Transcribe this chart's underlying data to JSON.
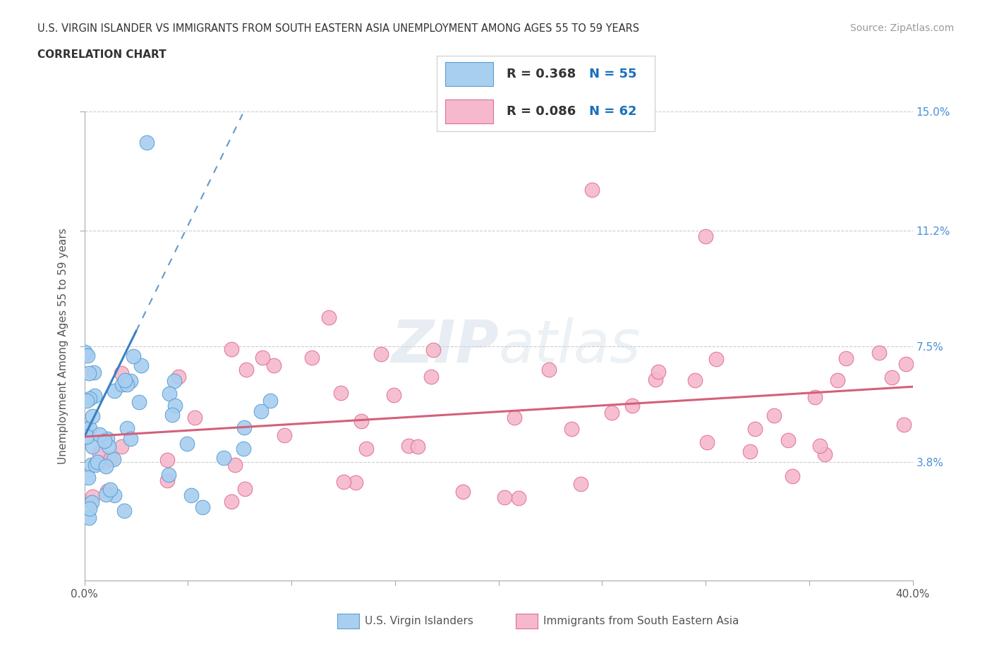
{
  "title_line1": "U.S. VIRGIN ISLANDER VS IMMIGRANTS FROM SOUTH EASTERN ASIA UNEMPLOYMENT AMONG AGES 55 TO 59 YEARS",
  "title_line2": "CORRELATION CHART",
  "source_text": "Source: ZipAtlas.com",
  "ylabel": "Unemployment Among Ages 55 to 59 years",
  "xlim": [
    0.0,
    0.4
  ],
  "ylim": [
    0.0,
    0.15
  ],
  "ytick_labels": [
    "3.8%",
    "7.5%",
    "11.2%",
    "15.0%"
  ],
  "ytick_values": [
    0.038,
    0.075,
    0.112,
    0.15
  ],
  "series1_label": "U.S. Virgin Islanders",
  "series1_color": "#a8cef0",
  "series1_edge_color": "#5a9fd4",
  "series1_line_color": "#3a7fc1",
  "series1_R": "0.368",
  "series1_N": "55",
  "series2_label": "Immigrants from South Eastern Asia",
  "series2_color": "#f5b8cc",
  "series2_edge_color": "#e07090",
  "series2_line_color": "#d4607a",
  "series2_R": "0.086",
  "series2_N": "62",
  "legend_R_color": "#1a6fbd",
  "background_color": "#ffffff",
  "grid_color": "#cccccc",
  "watermark_color": "#d0dde8"
}
